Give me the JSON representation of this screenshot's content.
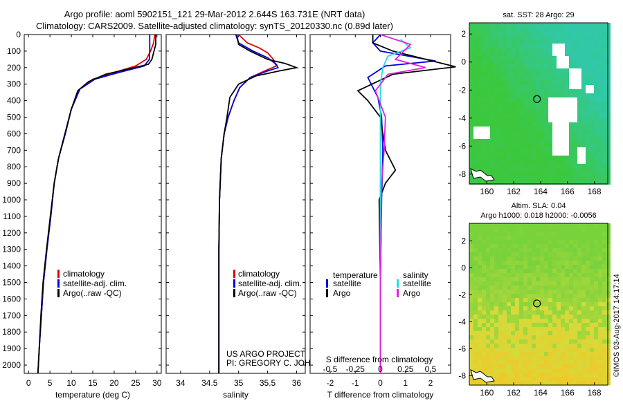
{
  "title_line1": "Argo profile: aoml 5902151_121 29-Mar-2012 2.644S 163.731E (NRT data)",
  "title_line2": "Climatology: CARS2009. Satellite-adjusted climatology: synTS_20120330.nc (0.89d later)",
  "colors": {
    "red": "#e00000",
    "blue": "#0000e0",
    "black": "#000000",
    "cyan": "#20e0e0",
    "magenta": "#e020e0",
    "sst_green": "#3cc83c",
    "sst_cyan": "#30c8a8",
    "sla_green": "#78d23c",
    "sla_yellow": "#d2dc3c",
    "sla_orange": "#f0c828"
  },
  "chart_data": [
    {
      "type": "line",
      "id": "temperature",
      "xlabel": "temperature (deg C)",
      "xlim": [
        -1,
        31
      ],
      "xticks": [
        0,
        5,
        10,
        15,
        20,
        25,
        30
      ],
      "ylim": [
        2050,
        0
      ],
      "yticks": [
        0,
        100,
        200,
        300,
        400,
        500,
        600,
        700,
        800,
        900,
        1000,
        1100,
        1200,
        1300,
        1400,
        1500,
        1600,
        1700,
        1800,
        1900,
        2000
      ],
      "legend": [
        "climatology",
        "satellite-adj. clim.",
        "Argo(..raw -QC)"
      ],
      "series": [
        {
          "name": "climatology",
          "color": "red",
          "points": [
            [
              29.5,
              0
            ],
            [
              29.2,
              50
            ],
            [
              28.5,
              100
            ],
            [
              27.5,
              150
            ],
            [
              25,
              190
            ],
            [
              20,
              230
            ],
            [
              15,
              270
            ],
            [
              12,
              330
            ],
            [
              10,
              450
            ],
            [
              8.5,
              600
            ],
            [
              7,
              750
            ],
            [
              6,
              900
            ],
            [
              5.2,
              1100
            ],
            [
              4.3,
              1300
            ],
            [
              3.5,
              1500
            ],
            [
              3,
              1700
            ],
            [
              2.5,
              1900
            ],
            [
              2.2,
              2050
            ]
          ]
        },
        {
          "name": "satellite-adj. clim.",
          "color": "blue",
          "points": [
            [
              28.3,
              0
            ],
            [
              28.3,
              50
            ],
            [
              28.3,
              100
            ],
            [
              28.2,
              150
            ],
            [
              27,
              190
            ],
            [
              21,
              230
            ],
            [
              15.5,
              270
            ],
            [
              12,
              330
            ],
            [
              10,
              450
            ],
            [
              8.5,
              600
            ],
            [
              7,
              750
            ],
            [
              6,
              900
            ],
            [
              5.2,
              1100
            ],
            [
              4.3,
              1300
            ],
            [
              3.5,
              1500
            ],
            [
              3,
              1700
            ],
            [
              2.5,
              1900
            ],
            [
              2.2,
              2050
            ]
          ]
        },
        {
          "name": "Argo(..raw -QC)",
          "color": "black",
          "points": [
            [
              29.7,
              0
            ],
            [
              29.7,
              60
            ],
            [
              29.3,
              100
            ],
            [
              28.8,
              150
            ],
            [
              28,
              180
            ],
            [
              23,
              210
            ],
            [
              18,
              240
            ],
            [
              14,
              285
            ],
            [
              11.5,
              340
            ],
            [
              10,
              450
            ],
            [
              8.6,
              600
            ],
            [
              7,
              750
            ],
            [
              6,
              900
            ],
            [
              5.1,
              1100
            ],
            [
              4.2,
              1300
            ],
            [
              3.4,
              1500
            ],
            [
              2.9,
              1700
            ],
            [
              2.5,
              1900
            ],
            [
              2.2,
              2050
            ]
          ]
        }
      ]
    },
    {
      "type": "line",
      "id": "salinity",
      "xlabel": "salinity",
      "xlim": [
        33.75,
        36.15
      ],
      "xticks": [
        34,
        34.5,
        35,
        35.5,
        36
      ],
      "ylim": [
        2050,
        0
      ],
      "legend": [
        "climatology",
        "satellite-adj. clim.",
        "Argo(..raw -QC)"
      ],
      "annotation": [
        "US ARGO PROJECT",
        "PI: GREGORY C. JOHNSON"
      ],
      "series": [
        {
          "name": "climatology",
          "color": "red",
          "points": [
            [
              35.0,
              0
            ],
            [
              35.15,
              50
            ],
            [
              35.35,
              80
            ],
            [
              35.5,
              110
            ],
            [
              35.6,
              150
            ],
            [
              35.65,
              190
            ],
            [
              35.45,
              220
            ],
            [
              35.2,
              260
            ],
            [
              35.02,
              320
            ],
            [
              34.92,
              400
            ],
            [
              34.82,
              500
            ],
            [
              34.75,
              600
            ],
            [
              34.7,
              750
            ],
            [
              34.67,
              1000
            ],
            [
              34.66,
              1300
            ],
            [
              34.66,
              1600
            ],
            [
              34.66,
              2050
            ]
          ]
        },
        {
          "name": "satellite-adj. clim.",
          "color": "blue",
          "points": [
            [
              34.95,
              0
            ],
            [
              35.0,
              50
            ],
            [
              35.25,
              100
            ],
            [
              35.5,
              140
            ],
            [
              35.65,
              180
            ],
            [
              35.68,
              200
            ],
            [
              35.5,
              220
            ],
            [
              35.2,
              260
            ],
            [
              35.02,
              320
            ],
            [
              34.92,
              400
            ],
            [
              34.82,
              500
            ],
            [
              34.75,
              600
            ],
            [
              34.7,
              750
            ],
            [
              34.67,
              1000
            ],
            [
              34.66,
              1300
            ],
            [
              34.66,
              1600
            ],
            [
              34.66,
              2050
            ]
          ]
        },
        {
          "name": "Argo(..raw -QC)",
          "color": "black",
          "points": [
            [
              34.97,
              0
            ],
            [
              35.0,
              60
            ],
            [
              35.2,
              100
            ],
            [
              35.5,
              150
            ],
            [
              35.8,
              175
            ],
            [
              36.0,
              200
            ],
            [
              35.7,
              220
            ],
            [
              35.3,
              250
            ],
            [
              35.0,
              300
            ],
            [
              34.85,
              380
            ],
            [
              34.8,
              500
            ],
            [
              34.75,
              600
            ],
            [
              34.7,
              750
            ],
            [
              34.67,
              1000
            ],
            [
              34.66,
              1300
            ],
            [
              34.66,
              1600
            ],
            [
              34.66,
              2050
            ]
          ]
        }
      ]
    },
    {
      "type": "line",
      "id": "difference",
      "xlabel": "T difference from climatology",
      "xlabel2": "S difference from climatology",
      "xlim": [
        -2.8,
        2.8
      ],
      "xticks": [
        -2,
        -1,
        0,
        1,
        2
      ],
      "xticks2": [
        "-0.5",
        "-0.25",
        "0",
        "0.25",
        "0.5"
      ],
      "ylim": [
        2050,
        0
      ],
      "legend_temperature_title": "temperature",
      "legend_salinity_title": "salinity",
      "legend_temperature": [
        "satellite",
        "Argo"
      ],
      "legend_salinity": [
        "satellite",
        "Argo"
      ],
      "series": [
        {
          "name": "T satellite",
          "color": "blue",
          "points": [
            [
              0,
              0
            ],
            [
              -0.3,
              50
            ],
            [
              0,
              100
            ],
            [
              2.2,
              160
            ],
            [
              0.2,
              190
            ],
            [
              -0.5,
              260
            ],
            [
              -0.1,
              380
            ],
            [
              0.05,
              500
            ],
            [
              0.1,
              700
            ],
            [
              0.05,
              1000
            ],
            [
              0,
              1500
            ],
            [
              0,
              2050
            ]
          ]
        },
        {
          "name": "T Argo",
          "color": "black",
          "points": [
            [
              -0.3,
              0
            ],
            [
              -0.3,
              50
            ],
            [
              0.5,
              100
            ],
            [
              3,
              195
            ],
            [
              0.5,
              240
            ],
            [
              -0.9,
              340
            ],
            [
              -0.5,
              400
            ],
            [
              0,
              500
            ],
            [
              0.2,
              700
            ],
            [
              0.6,
              820
            ],
            [
              0.2,
              900
            ],
            [
              -0.05,
              1000
            ],
            [
              0,
              1500
            ],
            [
              0,
              2050
            ]
          ]
        },
        {
          "name": "S satellite",
          "color": "cyan",
          "points": [
            [
              0.8,
              30
            ],
            [
              1.2,
              80
            ],
            [
              0.3,
              130
            ],
            [
              0.1,
              200
            ],
            [
              0,
              300
            ],
            [
              0,
              500
            ],
            [
              0,
              2050
            ]
          ]
        },
        {
          "name": "S Argo",
          "color": "magenta",
          "points": [
            [
              0,
              0
            ],
            [
              1.2,
              60
            ],
            [
              0.6,
              150
            ],
            [
              1.8,
              200
            ],
            [
              0.3,
              240
            ],
            [
              -0.2,
              340
            ],
            [
              0.2,
              500
            ],
            [
              0.15,
              700
            ],
            [
              0.05,
              900
            ],
            [
              0,
              1500
            ],
            [
              0,
              2050
            ]
          ]
        }
      ]
    },
    {
      "type": "heatmap",
      "id": "sst_map",
      "title": "sat. SST: 28 Argo: 29",
      "xlim": [
        158.7,
        169
      ],
      "ylim": [
        -8.7,
        2.8
      ],
      "xticks": [
        160,
        162,
        164,
        166,
        168
      ],
      "yticks": [
        2,
        0,
        -2,
        -4,
        -6,
        -8
      ],
      "marker": {
        "lon": 163.731,
        "lat": -2.644
      }
    },
    {
      "type": "heatmap",
      "id": "sla_map",
      "title": "Altim. SLA: 0.04",
      "subtitle": "Argo h1000: 0.018 h2000: -0.0056",
      "xlim": [
        158.7,
        169
      ],
      "ylim": [
        -8.7,
        3.3
      ],
      "xticks": [
        160,
        162,
        164,
        166,
        168
      ],
      "yticks": [
        2,
        0,
        -2,
        -4,
        -6,
        -8
      ],
      "marker": {
        "lon": 163.731,
        "lat": -2.644
      }
    }
  ],
  "watermark": "©IMOS 03-Aug-2017 14:17:14"
}
